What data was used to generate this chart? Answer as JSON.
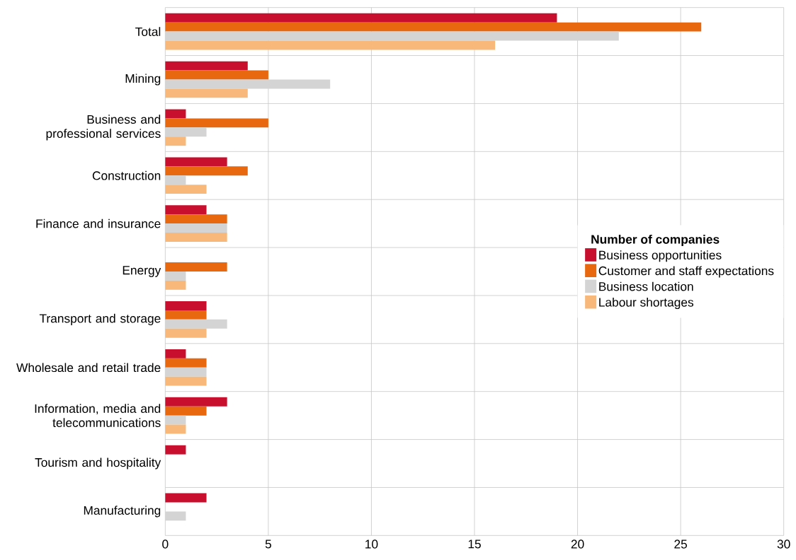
{
  "chart_data": {
    "type": "bar",
    "orientation": "horizontal",
    "legend_title": "Number of companies",
    "categories": [
      "Total",
      "Mining",
      "Business and professional services",
      "Construction",
      "Finance and insurance",
      "Energy",
      "Transport and storage",
      "Wholesale and retail trade",
      "Information, media and telecommunications",
      "Tourism and hospitality",
      "Manufacturing"
    ],
    "series": [
      {
        "name": "Business opportunities",
        "color": "#c8102e",
        "values": [
          19,
          4,
          1,
          3,
          2,
          null,
          2,
          1,
          3,
          1,
          2
        ]
      },
      {
        "name": "Customer and staff expectations",
        "color": "#e8680f",
        "values": [
          26,
          5,
          5,
          4,
          3,
          3,
          2,
          2,
          2,
          null,
          null
        ]
      },
      {
        "name": "Business location",
        "color": "#d4d4d4",
        "values": [
          22,
          8,
          2,
          1,
          3,
          1,
          3,
          2,
          1,
          null,
          1
        ]
      },
      {
        "name": "Labour shortages",
        "color": "#f8b87a",
        "values": [
          16,
          4,
          1,
          2,
          3,
          1,
          2,
          2,
          1,
          null,
          null
        ]
      }
    ],
    "xlim": [
      0,
      30
    ],
    "xticks": [
      0,
      5,
      10,
      15,
      20,
      25,
      30
    ],
    "grid": true,
    "legend": "right"
  }
}
